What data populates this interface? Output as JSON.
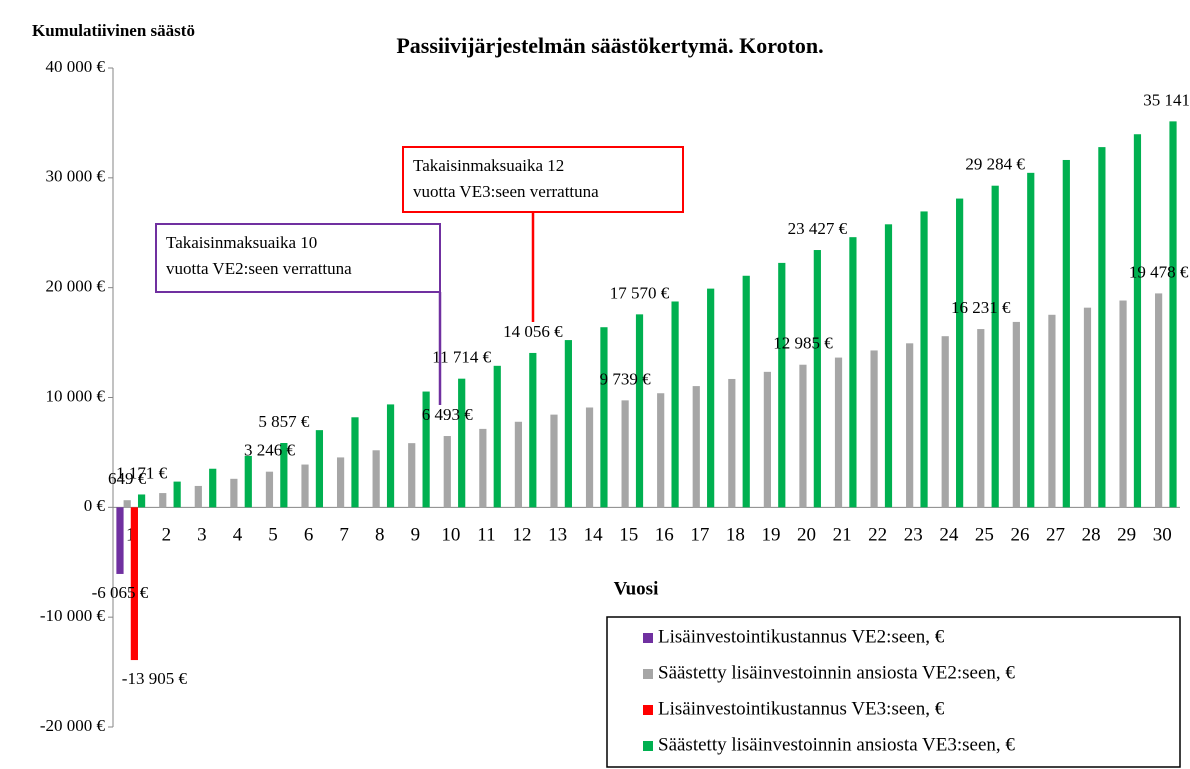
{
  "chart_data": {
    "type": "bar",
    "title": "Passiivijärjestelmän säästökertymä. Koroton.",
    "y_label": "Kumulatiivinen säästö",
    "x_label": "Vuosi",
    "categories": [
      "1",
      "2",
      "3",
      "4",
      "5",
      "6",
      "7",
      "8",
      "9",
      "10",
      "11",
      "12",
      "13",
      "14",
      "15",
      "16",
      "17",
      "18",
      "19",
      "20",
      "21",
      "22",
      "23",
      "24",
      "25",
      "26",
      "27",
      "28",
      "29",
      "30"
    ],
    "ylim": [
      -20000,
      40000
    ],
    "yticks": [
      {
        "value": -20000,
        "label": "-20 000 €"
      },
      {
        "value": -10000,
        "label": "-10 000 €"
      },
      {
        "value": 0,
        "label": "0 €"
      },
      {
        "value": 10000,
        "label": "10 000 €"
      },
      {
        "value": 20000,
        "label": "20 000 €"
      },
      {
        "value": 30000,
        "label": "30 000 €"
      },
      {
        "value": 40000,
        "label": "40 000 €"
      }
    ],
    "grid": false,
    "legend": "bottom-right",
    "series": [
      {
        "name": "Lisäinvestointikustannus VE2:seen, €",
        "color": "#7030a0",
        "values": [
          -6065,
          null,
          null,
          null,
          null,
          null,
          null,
          null,
          null,
          null,
          null,
          null,
          null,
          null,
          null,
          null,
          null,
          null,
          null,
          null,
          null,
          null,
          null,
          null,
          null,
          null,
          null,
          null,
          null,
          null
        ],
        "value_labels": [
          "-6 065 €",
          null,
          null,
          null,
          null,
          null,
          null,
          null,
          null,
          null,
          null,
          null,
          null,
          null,
          null,
          null,
          null,
          null,
          null,
          null,
          null,
          null,
          null,
          null,
          null,
          null,
          null,
          null,
          null,
          null
        ]
      },
      {
        "name": "Säästetty lisäinvestoinnin ansiosta VE2:seen, €",
        "color": "#a6a6a6",
        "values": [
          649,
          1299,
          1948,
          2597,
          3246,
          3896,
          4545,
          5194,
          5844,
          6493,
          7142,
          7791,
          8441,
          9090,
          9739,
          10388,
          11038,
          11687,
          12336,
          12985,
          13635,
          14284,
          14933,
          15582,
          16231,
          16881,
          17530,
          18179,
          18829,
          19478
        ],
        "value_labels": [
          "649 €",
          null,
          null,
          null,
          "3 246 €",
          null,
          null,
          null,
          null,
          "6 493 €",
          null,
          null,
          null,
          null,
          "9 739 €",
          null,
          null,
          null,
          null,
          "12 985 €",
          null,
          null,
          null,
          null,
          "16 231 €",
          null,
          null,
          null,
          null,
          "19 478 €"
        ]
      },
      {
        "name": "Lisäinvestointikustannus VE3:seen, €",
        "color": "#ff0000",
        "values": [
          -13905,
          null,
          null,
          null,
          null,
          null,
          null,
          null,
          null,
          null,
          null,
          null,
          null,
          null,
          null,
          null,
          null,
          null,
          null,
          null,
          null,
          null,
          null,
          null,
          null,
          null,
          null,
          null,
          null,
          null
        ],
        "value_labels": [
          "-13 905 €",
          null,
          null,
          null,
          null,
          null,
          null,
          null,
          null,
          null,
          null,
          null,
          null,
          null,
          null,
          null,
          null,
          null,
          null,
          null,
          null,
          null,
          null,
          null,
          null,
          null,
          null,
          null,
          null,
          null
        ]
      },
      {
        "name": "Säästetty lisäinvestoinnin ansiosta VE3:seen, €",
        "color": "#00b050",
        "values": [
          1171,
          2343,
          3514,
          4685,
          5857,
          7028,
          8199,
          9371,
          10542,
          11714,
          12885,
          14056,
          15228,
          16399,
          17570,
          18742,
          19913,
          21084,
          22255,
          23427,
          24598,
          25769,
          26941,
          28112,
          29284,
          30455,
          31626,
          32797,
          33969,
          35141
        ],
        "value_labels": [
          "1 171 €",
          null,
          null,
          null,
          "5 857 €",
          null,
          null,
          null,
          null,
          "11 714 €",
          null,
          "14 056 €",
          null,
          null,
          "17 570 €",
          null,
          null,
          null,
          null,
          "23 427 €",
          null,
          null,
          null,
          null,
          "29 284 €",
          null,
          null,
          null,
          null,
          "35 141 €"
        ]
      }
    ],
    "annotations": [
      {
        "lines": [
          "Takaisinmaksuaika 10",
          "vuotta VE2:seen verrattuna"
        ],
        "color": "#7030a0"
      },
      {
        "lines": [
          "Takaisinmaksuaika 12",
          "vuotta VE3:seen verrattuna"
        ],
        "color": "#ff0000"
      }
    ]
  }
}
